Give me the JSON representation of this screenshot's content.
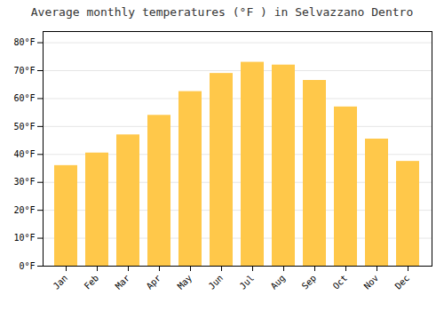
{
  "chart_data": {
    "type": "bar",
    "title": "Average monthly temperatures (°F ) in Selvazzano Dentro",
    "categories": [
      "Jan",
      "Feb",
      "Mar",
      "Apr",
      "May",
      "Jun",
      "Jul",
      "Aug",
      "Sep",
      "Oct",
      "Nov",
      "Dec"
    ],
    "values": [
      36,
      40.5,
      47,
      54,
      62.5,
      69,
      73,
      72,
      66.5,
      57,
      45.5,
      37.5
    ],
    "color": "#FFC84A",
    "ylim": [
      0,
      84
    ],
    "yticks": [
      {
        "value": 0,
        "label": "0°F"
      },
      {
        "value": 10,
        "label": "10°F"
      },
      {
        "value": 20,
        "label": "20°F"
      },
      {
        "value": 30,
        "label": "30°F"
      },
      {
        "value": 40,
        "label": "40°F"
      },
      {
        "value": 50,
        "label": "50°F"
      },
      {
        "value": 60,
        "label": "60°F"
      },
      {
        "value": 70,
        "label": "70°F"
      },
      {
        "value": 80,
        "label": "80°F"
      }
    ],
    "grid": true
  }
}
